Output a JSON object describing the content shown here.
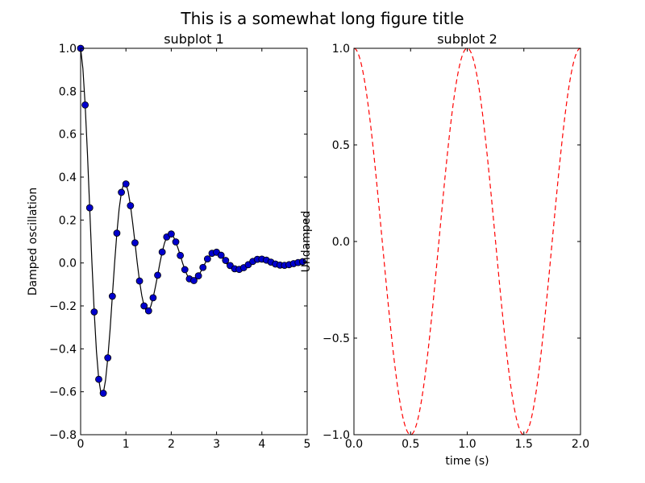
{
  "figure": {
    "title": "This is a somewhat long figure title"
  },
  "chart_data": [
    {
      "type": "line",
      "title": "subplot 1",
      "xlabel": "",
      "ylabel": "Damped oscillation",
      "xlim": [
        0,
        5
      ],
      "ylim": [
        -0.8,
        1.0
      ],
      "xticks": [
        0,
        1,
        2,
        3,
        4,
        5
      ],
      "xtick_labels": [
        "0",
        "1",
        "2",
        "3",
        "4",
        "5"
      ],
      "yticks": [
        -0.8,
        -0.6,
        -0.4,
        -0.2,
        0.0,
        0.2,
        0.4,
        0.6,
        0.8,
        1.0
      ],
      "ytick_labels": [
        "−0.8",
        "−0.6",
        "−0.4",
        "−0.2",
        "0.0",
        "0.2",
        "0.4",
        "0.6",
        "0.8",
        "1.0"
      ],
      "grid": false,
      "series": [
        {
          "style": "solid",
          "color": "#000000",
          "marker": "none",
          "x": [
            0.0,
            0.05,
            0.1,
            0.15,
            0.2,
            0.25,
            0.3,
            0.35,
            0.4,
            0.45,
            0.5,
            0.55,
            0.6,
            0.65,
            0.7,
            0.75,
            0.8,
            0.85,
            0.9,
            0.95,
            1.0,
            1.05,
            1.1,
            1.15,
            1.2,
            1.25,
            1.3,
            1.35,
            1.4,
            1.45,
            1.5,
            1.55,
            1.6,
            1.65,
            1.7,
            1.75,
            1.8,
            1.85,
            1.9,
            1.95,
            2.0,
            2.05,
            2.1,
            2.15,
            2.2,
            2.25,
            2.3,
            2.35,
            2.4,
            2.45,
            2.5,
            2.55,
            2.6,
            2.65,
            2.7,
            2.75,
            2.8,
            2.85,
            2.9,
            2.95,
            3.0,
            3.1,
            3.2,
            3.3,
            3.4,
            3.5,
            3.6,
            3.7,
            3.8,
            3.9,
            4.0,
            4.1,
            4.2,
            4.3,
            4.4,
            4.5,
            4.6,
            4.7,
            4.8,
            4.9,
            5.0
          ],
          "y": [
            1.0,
            0.906,
            0.736,
            0.512,
            0.257,
            0.0,
            -0.228,
            -0.414,
            -0.542,
            -0.608,
            -0.607,
            -0.546,
            -0.442,
            -0.311,
            -0.155,
            0.0,
            0.139,
            0.252,
            0.329,
            0.369,
            0.368,
            0.332,
            0.267,
            0.184,
            0.094,
            0.0,
            -0.084,
            -0.152,
            -0.2,
            -0.224,
            -0.223,
            -0.201,
            -0.162,
            -0.112,
            -0.057,
            0.0,
            0.051,
            0.092,
            0.121,
            0.136,
            0.135,
            0.122,
            0.098,
            0.068,
            0.035,
            0.0,
            -0.031,
            -0.056,
            -0.074,
            -0.082,
            -0.082,
            -0.074,
            -0.06,
            -0.041,
            -0.021,
            0.0,
            0.019,
            0.034,
            0.045,
            0.05,
            0.05,
            0.036,
            0.0,
            -0.017,
            -0.027,
            -0.03,
            -0.022,
            -0.008,
            0.0,
            0.01,
            0.018,
            0.016,
            0.01,
            0.002,
            -0.006,
            -0.011,
            -0.01,
            -0.004,
            0.002,
            0.006,
            0.007
          ]
        },
        {
          "style": "none",
          "color": "#0000cc",
          "marker": "circle",
          "x": [
            0.0,
            0.1,
            0.2,
            0.3,
            0.4,
            0.5,
            0.6,
            0.7,
            0.8,
            0.9,
            1.0,
            1.1,
            1.2,
            1.3,
            1.4,
            1.5,
            1.6,
            1.7,
            1.8,
            1.9,
            2.0,
            2.1,
            2.2,
            2.3,
            2.4,
            2.5,
            2.6,
            2.7,
            2.8,
            2.9,
            3.0,
            3.1,
            3.2,
            3.3,
            3.4,
            3.5,
            3.6,
            3.7,
            3.8,
            3.9,
            4.0,
            4.1,
            4.2,
            4.3,
            4.4,
            4.5,
            4.6,
            4.7,
            4.8,
            4.9
          ],
          "y": [
            1.0,
            0.736,
            0.257,
            -0.228,
            -0.542,
            -0.607,
            -0.442,
            -0.155,
            0.139,
            0.329,
            0.368,
            0.267,
            0.094,
            -0.084,
            -0.2,
            -0.223,
            -0.162,
            -0.057,
            0.051,
            0.121,
            0.135,
            0.098,
            0.035,
            -0.031,
            -0.074,
            -0.082,
            -0.06,
            -0.021,
            0.019,
            0.045,
            0.05,
            0.036,
            0.012,
            -0.012,
            -0.027,
            -0.03,
            -0.022,
            -0.008,
            0.007,
            0.017,
            0.018,
            0.013,
            0.004,
            -0.005,
            -0.01,
            -0.011,
            -0.008,
            -0.003,
            0.002,
            0.006
          ]
        }
      ]
    },
    {
      "type": "line",
      "title": "subplot 2",
      "xlabel": "time (s)",
      "ylabel": "Undamped",
      "xlim": [
        0.0,
        2.0
      ],
      "ylim": [
        -1.0,
        1.0
      ],
      "xticks": [
        0.0,
        0.5,
        1.0,
        1.5,
        2.0
      ],
      "xtick_labels": [
        "0.0",
        "0.5",
        "1.0",
        "1.5",
        "2.0"
      ],
      "yticks": [
        -1.0,
        -0.5,
        0.0,
        0.5,
        1.0
      ],
      "ytick_labels": [
        "−1.0",
        "−0.5",
        "0.0",
        "0.5",
        "1.0"
      ],
      "grid": false,
      "series": [
        {
          "style": "dashed",
          "color": "#ff0000",
          "marker": "none",
          "function": "cos(2*pi*t)",
          "x_range": [
            0.0,
            2.0
          ]
        }
      ]
    }
  ]
}
